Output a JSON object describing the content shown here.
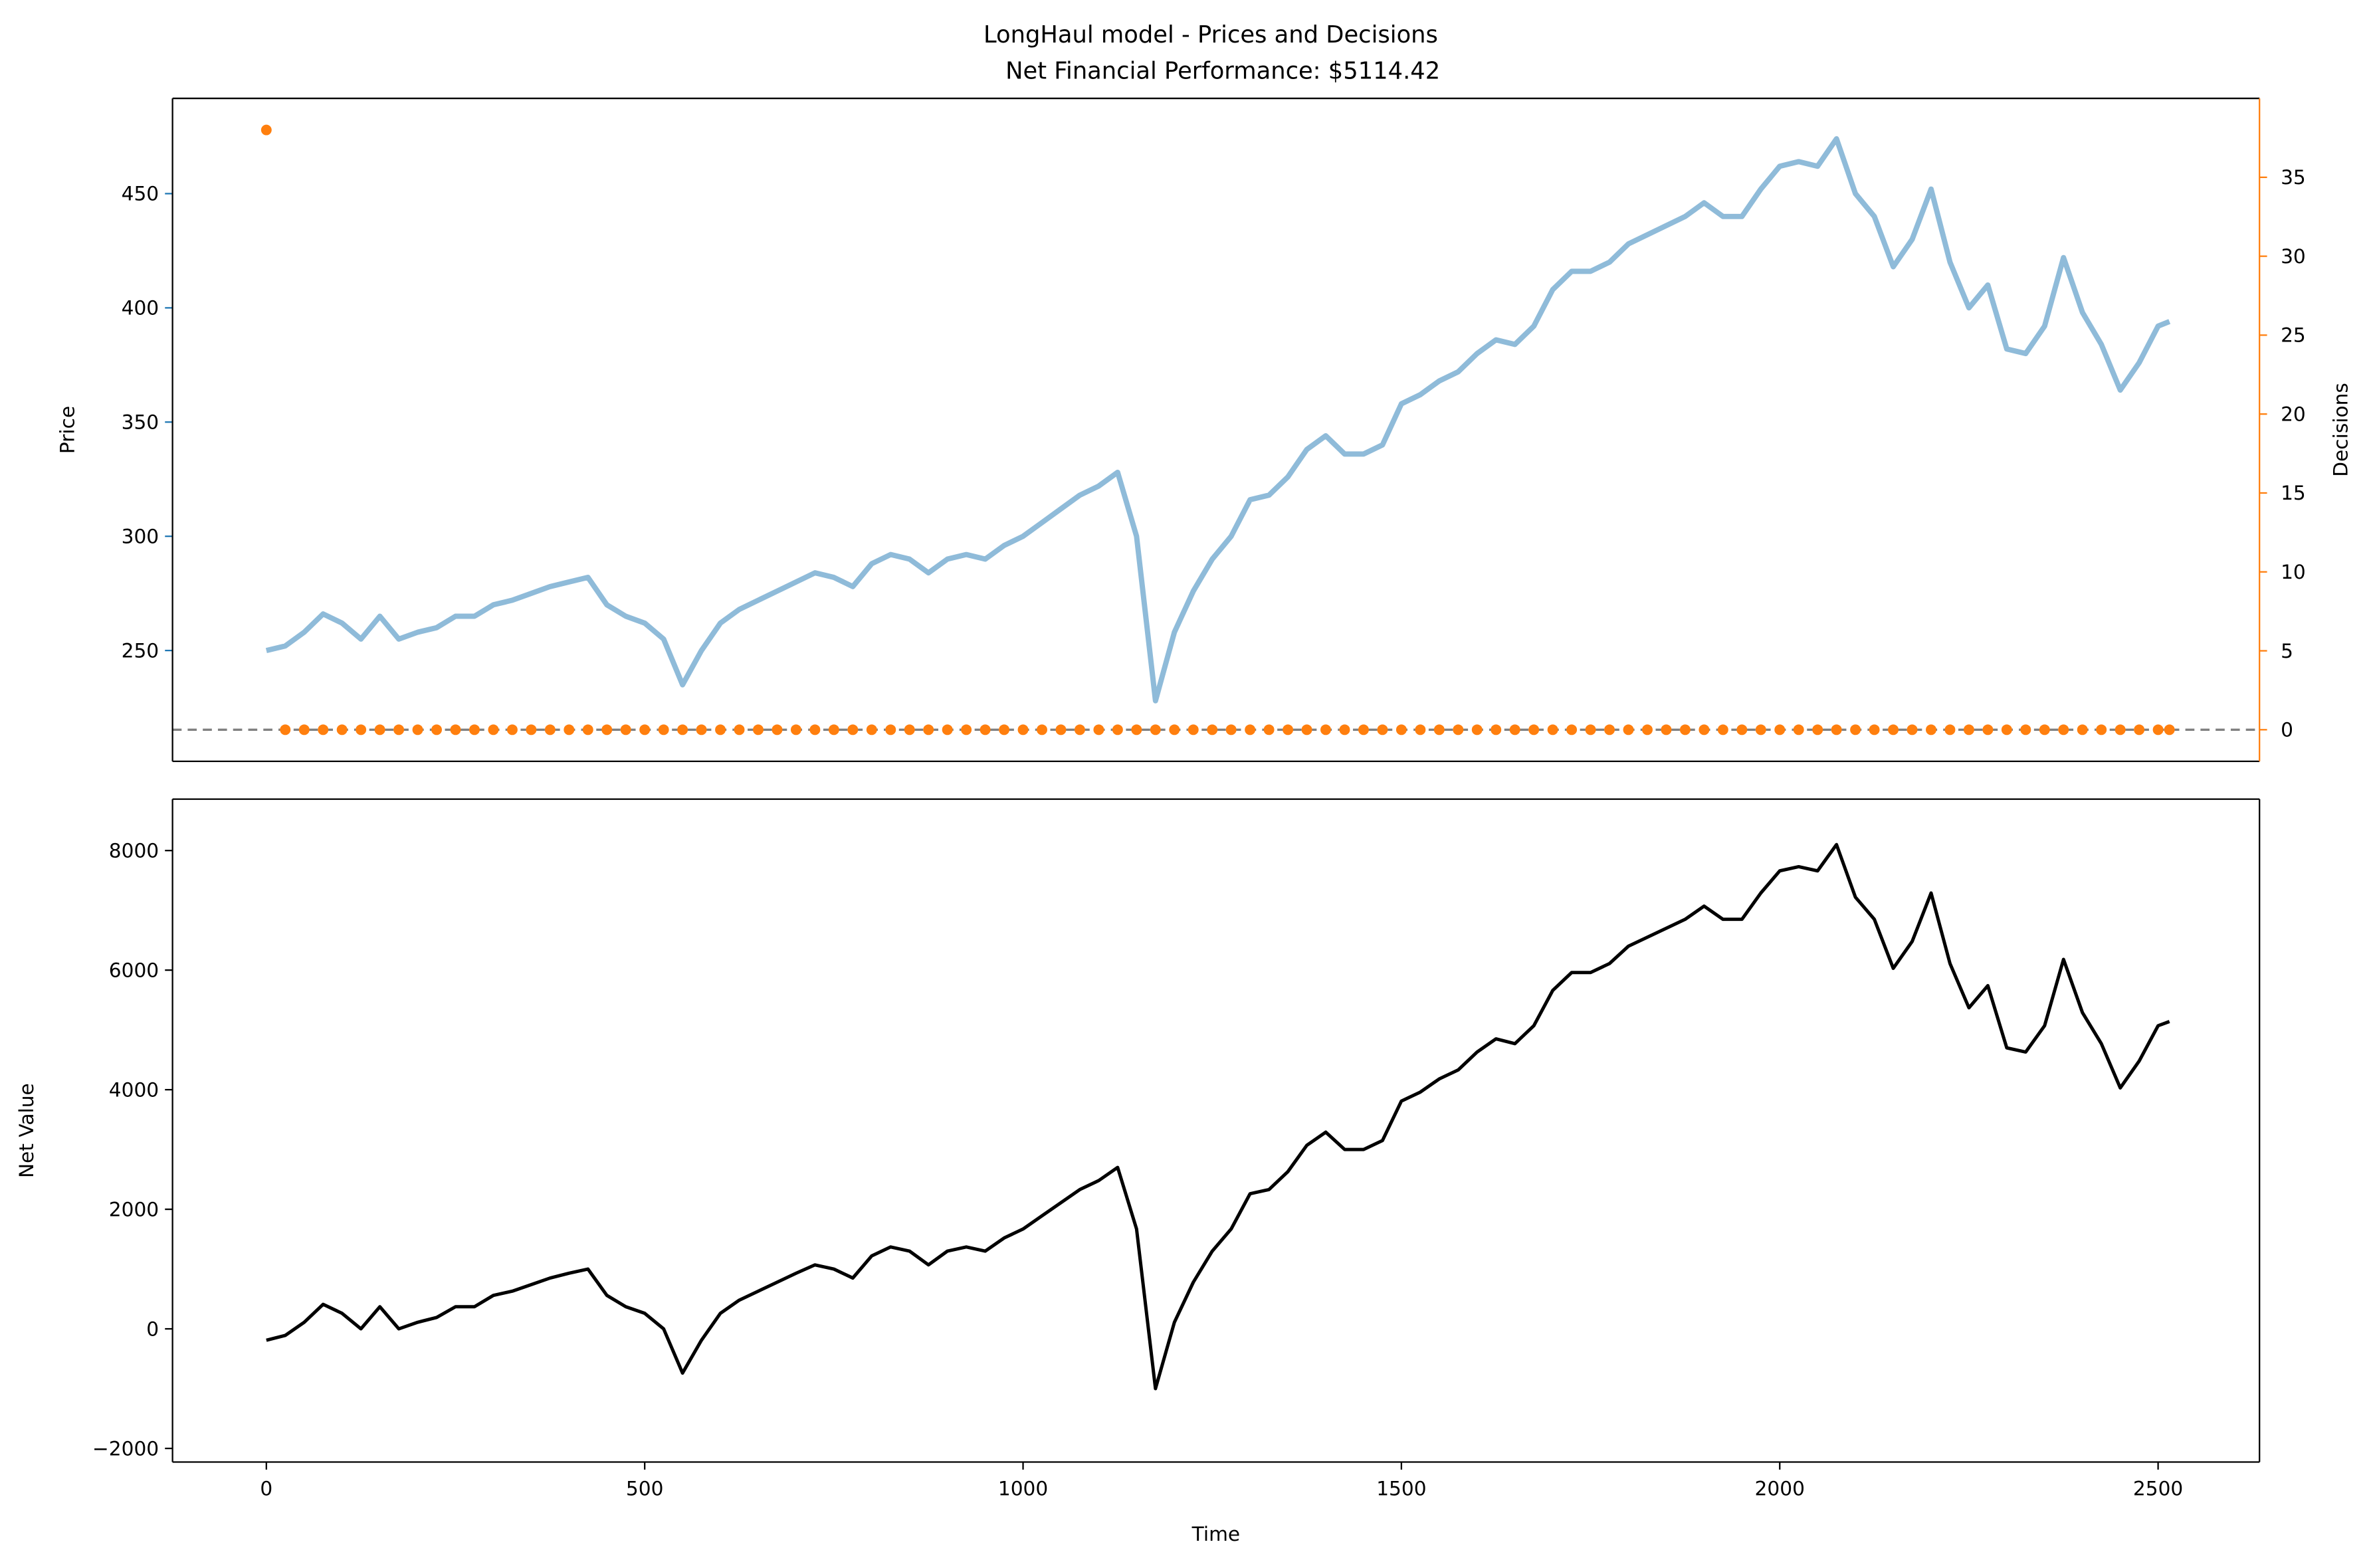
{
  "chart_data": [
    {
      "type": "line",
      "title": "LongHaul model - Prices and Decisions",
      "subtitle": "Net Financial Performance: $5114.42",
      "ylabel": "Price",
      "y2label": "Decisions",
      "x": [
        0,
        25,
        50,
        75,
        100,
        125,
        150,
        175,
        200,
        225,
        250,
        275,
        300,
        325,
        350,
        375,
        400,
        425,
        450,
        475,
        500,
        525,
        550,
        575,
        600,
        625,
        650,
        675,
        700,
        725,
        750,
        775,
        800,
        825,
        850,
        875,
        900,
        925,
        950,
        975,
        1000,
        1025,
        1050,
        1075,
        1100,
        1125,
        1150,
        1175,
        1200,
        1225,
        1250,
        1275,
        1300,
        1325,
        1350,
        1375,
        1400,
        1425,
        1450,
        1475,
        1500,
        1525,
        1550,
        1575,
        1600,
        1625,
        1650,
        1675,
        1700,
        1725,
        1750,
        1775,
        1800,
        1825,
        1850,
        1875,
        1900,
        1925,
        1950,
        1975,
        2000,
        2025,
        2050,
        2075,
        2100,
        2125,
        2150,
        2175,
        2200,
        2225,
        2250,
        2275,
        2300,
        2325,
        2350,
        2375,
        2400,
        2425,
        2450,
        2475,
        2500,
        2515
      ],
      "series": [
        {
          "type": "line",
          "axis": "y",
          "color": "#1f77b4",
          "alpha": 0.5,
          "values": [
            250,
            252,
            258,
            266,
            262,
            255,
            265,
            255,
            258,
            260,
            265,
            265,
            270,
            272,
            275,
            278,
            280,
            282,
            270,
            265,
            262,
            255,
            235,
            250,
            262,
            268,
            272,
            276,
            280,
            284,
            282,
            278,
            288,
            292,
            290,
            284,
            290,
            292,
            290,
            296,
            300,
            306,
            312,
            318,
            322,
            328,
            300,
            228,
            258,
            276,
            290,
            300,
            316,
            318,
            326,
            338,
            344,
            336,
            336,
            340,
            358,
            362,
            368,
            372,
            380,
            386,
            384,
            392,
            408,
            416,
            416,
            420,
            428,
            432,
            436,
            440,
            446,
            440,
            440,
            452,
            462,
            464,
            462,
            474,
            450,
            440,
            418,
            430,
            452,
            420,
            400,
            410,
            382,
            380,
            392,
            422,
            398,
            384,
            364,
            376,
            392,
            394
          ]
        },
        {
          "type": "scatter",
          "axis": "y2",
          "color": "#ff7f0e",
          "values": [
            38,
            0,
            0,
            0,
            0,
            0,
            0,
            0,
            0,
            0,
            0,
            0,
            0,
            0,
            0,
            0,
            0,
            0,
            0,
            0,
            0,
            0,
            0,
            0,
            0,
            0,
            0,
            0,
            0,
            0,
            0,
            0,
            0,
            0,
            0,
            0,
            0,
            0,
            0,
            0,
            0,
            0,
            0,
            0,
            0,
            0,
            0,
            0,
            0,
            0,
            0,
            0,
            0,
            0,
            0,
            0,
            0,
            0,
            0,
            0,
            0,
            0,
            0,
            0,
            0,
            0,
            0,
            0,
            0,
            0,
            0,
            0,
            0,
            0,
            0,
            0,
            0,
            0,
            0,
            0,
            0,
            0,
            0,
            0,
            0,
            0,
            0,
            0,
            0,
            0,
            0,
            0,
            0,
            0,
            0,
            0,
            0,
            0,
            0,
            0,
            0,
            0
          ]
        }
      ],
      "xlim": [
        -124,
        2634
      ],
      "ylim": [
        201.5,
        491.7
      ],
      "yticks": [
        250,
        300,
        350,
        400,
        450
      ],
      "y2lim": [
        -2,
        40
      ],
      "y2ticks": [
        0,
        5,
        10,
        15,
        20,
        25,
        30,
        35
      ],
      "hline": {
        "value": 0,
        "axis": "y2",
        "color": "#808080"
      }
    },
    {
      "type": "line",
      "xlabel": "Time",
      "ylabel": "Net Value",
      "x": [
        0,
        25,
        50,
        75,
        100,
        125,
        150,
        175,
        200,
        225,
        250,
        275,
        300,
        325,
        350,
        375,
        400,
        425,
        450,
        475,
        500,
        525,
        550,
        575,
        600,
        625,
        650,
        675,
        700,
        725,
        750,
        775,
        800,
        825,
        850,
        875,
        900,
        925,
        950,
        975,
        1000,
        1025,
        1050,
        1075,
        1100,
        1125,
        1150,
        1175,
        1200,
        1225,
        1250,
        1275,
        1300,
        1325,
        1350,
        1375,
        1400,
        1425,
        1450,
        1475,
        1500,
        1525,
        1550,
        1575,
        1600,
        1625,
        1650,
        1675,
        1700,
        1725,
        1750,
        1775,
        1800,
        1825,
        1850,
        1875,
        1900,
        1925,
        1950,
        1975,
        2000,
        2025,
        2050,
        2075,
        2100,
        2125,
        2150,
        2175,
        2200,
        2225,
        2250,
        2275,
        2300,
        2325,
        2350,
        2375,
        2400,
        2425,
        2450,
        2475,
        2500,
        2515
      ],
      "series": [
        {
          "type": "line",
          "axis": "y",
          "color": "#000000",
          "values": [
            -190,
            -110,
            110,
            410,
            260,
            0,
            370,
            0,
            110,
            190,
            370,
            370,
            560,
            630,
            740,
            850,
            930,
            1000,
            560,
            370,
            260,
            0,
            -740,
            -190,
            260,
            480,
            630,
            780,
            930,
            1070,
            1000,
            850,
            1220,
            1370,
            1300,
            1070,
            1300,
            1370,
            1300,
            1520,
            1670,
            1890,
            2110,
            2330,
            2480,
            2700,
            1670,
            -1000,
            110,
            780,
            1300,
            1670,
            2260,
            2330,
            2630,
            3070,
            3290,
            3000,
            3000,
            3150,
            3810,
            3960,
            4180,
            4330,
            4630,
            4850,
            4770,
            5070,
            5660,
            5960,
            5960,
            6110,
            6400,
            6550,
            6700,
            6850,
            7070,
            6850,
            6850,
            7290,
            7660,
            7730,
            7660,
            8100,
            7220,
            6850,
            6030,
            6480,
            7290,
            6110,
            5370,
            5740,
            4700,
            4630,
            5070,
            6180,
            5290,
            4770,
            4030,
            4480,
            5070,
            5140
          ]
        }
      ],
      "xlim": [
        -124,
        2634
      ],
      "ylim": [
        -2228,
        8860
      ],
      "xticks": [
        0,
        500,
        1000,
        1500,
        2000,
        2500
      ],
      "yticks": [
        {
          "value": -2000,
          "label": "−2000"
        },
        0,
        2000,
        4000,
        6000,
        8000
      ]
    }
  ]
}
